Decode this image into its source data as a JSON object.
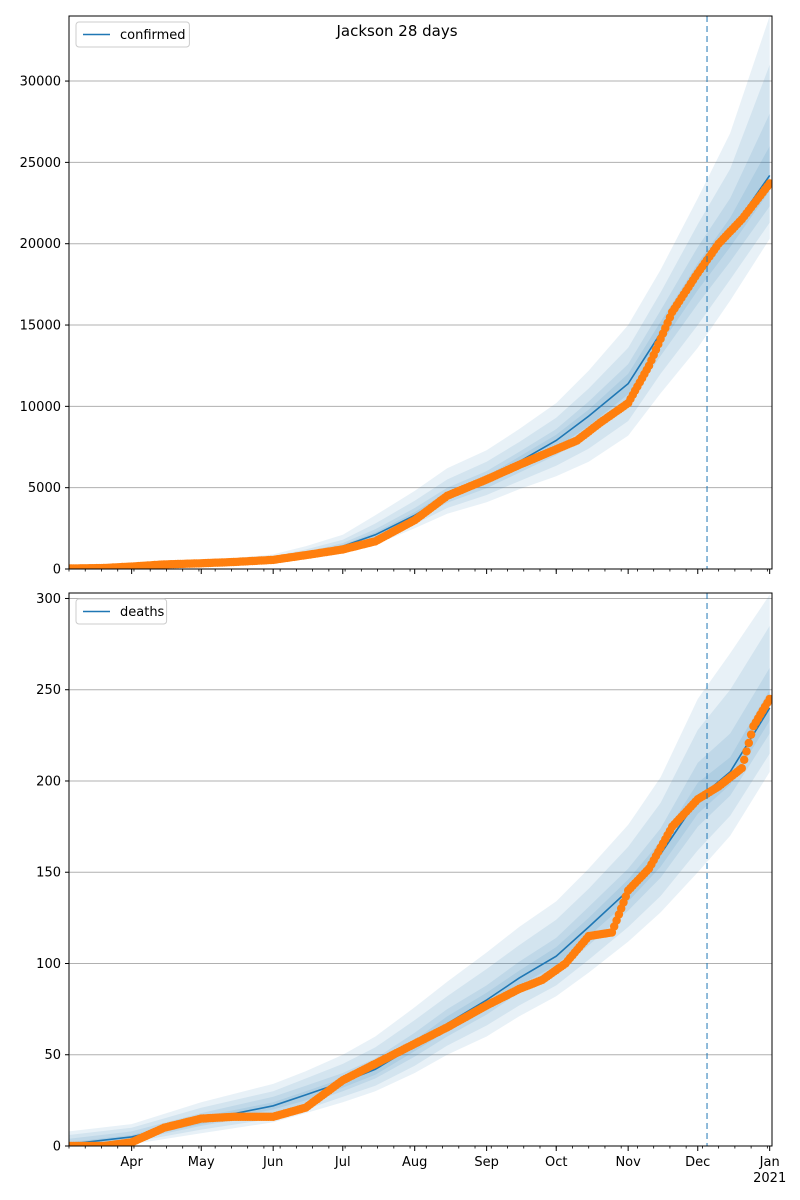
{
  "title": "Jackson 28 days",
  "chart_data": [
    {
      "type": "line",
      "legend": "confirmed",
      "legend_position": "top-left",
      "ylim": [
        0,
        34000
      ],
      "yticks": [
        0,
        5000,
        10000,
        15000,
        20000,
        25000,
        30000
      ],
      "grid": "y",
      "x_start": "2020-03-05",
      "x_end": "2021-01-02",
      "vline_date": "2020-12-05",
      "model": {
        "dates": [
          "2020-03-05",
          "2020-04-01",
          "2020-05-01",
          "2020-06-01",
          "2020-06-15",
          "2020-07-01",
          "2020-07-15",
          "2020-08-01",
          "2020-08-15",
          "2020-09-01",
          "2020-09-15",
          "2020-10-01",
          "2020-10-15",
          "2020-11-01",
          "2020-11-15",
          "2020-12-01",
          "2020-12-15",
          "2021-01-01"
        ],
        "median": [
          50,
          150,
          330,
          600,
          900,
          1400,
          2100,
          3300,
          4500,
          5500,
          6600,
          7900,
          9400,
          11400,
          14500,
          18000,
          20700,
          24200
        ],
        "bands": [
          {
            "lo": [
              0,
              100,
              250,
              450,
              650,
              1000,
              1500,
              2500,
              3400,
              4100,
              4900,
              5700,
              6600,
              8200,
              10800,
              13600,
              16500,
              20300
            ],
            "hi": [
              150,
              260,
              480,
              900,
              1400,
              2100,
              3300,
              4800,
              6200,
              7300,
              8600,
              10200,
              12200,
              15000,
              18400,
              22800,
              26800,
              34000
            ]
          },
          {
            "lo": [
              10,
              115,
              275,
              500,
              720,
              1120,
              1680,
              2750,
              3750,
              4550,
              5400,
              6350,
              7400,
              9100,
              12000,
              15000,
              17800,
              21300
            ],
            "hi": [
              110,
              220,
              420,
              780,
              1200,
              1800,
              2800,
              4200,
              5500,
              6600,
              7800,
              9300,
              11100,
              13600,
              17000,
              21200,
              24600,
              31000
            ]
          },
          {
            "lo": [
              25,
              130,
              300,
              540,
              790,
              1240,
              1860,
              2970,
              4070,
              4970,
              5920,
              7000,
              8200,
              10100,
              13100,
              16300,
              18900,
              22300
            ],
            "hi": [
              80,
              185,
              375,
              690,
              1040,
              1600,
              2440,
              3750,
              5000,
              6020,
              7200,
              8600,
              10300,
              12600,
              15900,
              19800,
              22800,
              28000
            ]
          },
          {
            "lo": [
              40,
              140,
              315,
              570,
              845,
              1320,
              1980,
              3135,
              4285,
              5235,
              6260,
              7450,
              8800,
              10750,
              13800,
              17150,
              19800,
              23250
            ],
            "hi": [
              60,
              165,
              350,
              640,
              960,
              1490,
              2250,
              3500,
              4720,
              5720,
              6900,
              8250,
              9800,
              12000,
              15200,
              18800,
              21600,
              26000
            ]
          }
        ]
      },
      "observed": {
        "dates": [
          "2020-03-05",
          "2020-03-20",
          "2020-04-01",
          "2020-04-15",
          "2020-05-01",
          "2020-05-15",
          "2020-06-01",
          "2020-06-15",
          "2020-07-01",
          "2020-07-15",
          "2020-08-01",
          "2020-08-15",
          "2020-09-01",
          "2020-09-15",
          "2020-09-30",
          "2020-10-10",
          "2020-10-20",
          "2020-11-01",
          "2020-11-10",
          "2020-11-20",
          "2020-12-01",
          "2020-12-10",
          "2020-12-20",
          "2021-01-01"
        ],
        "values": [
          30,
          60,
          150,
          280,
          350,
          430,
          560,
          850,
          1200,
          1700,
          3000,
          4500,
          5500,
          6400,
          7300,
          7900,
          9000,
          10200,
          12500,
          15800,
          18200,
          20000,
          21500,
          23700
        ]
      }
    },
    {
      "type": "line",
      "legend": "deaths",
      "legend_position": "top-left",
      "ylim": [
        0,
        303
      ],
      "yticks": [
        0,
        50,
        100,
        150,
        200,
        250,
        300
      ],
      "xticks": [
        "Apr",
        "May",
        "Jun",
        "Jul",
        "Aug",
        "Sep",
        "Oct",
        "Nov",
        "Dec",
        "Jan\n2021"
      ],
      "grid": "y",
      "x_start": "2020-03-05",
      "x_end": "2021-01-02",
      "vline_date": "2020-12-05",
      "model": {
        "dates": [
          "2020-03-05",
          "2020-04-01",
          "2020-05-01",
          "2020-06-01",
          "2020-06-15",
          "2020-07-01",
          "2020-07-15",
          "2020-08-01",
          "2020-08-15",
          "2020-09-01",
          "2020-09-15",
          "2020-10-01",
          "2020-10-15",
          "2020-11-01",
          "2020-11-15",
          "2020-12-01",
          "2020-12-15",
          "2021-01-01"
        ],
        "median": [
          1,
          5,
          14,
          22,
          28,
          35,
          42,
          55,
          67,
          80,
          92,
          104,
          120,
          140,
          160,
          190,
          205,
          240
        ],
        "bands": [
          {
            "lo": [
              0,
              1,
              7,
              13,
              18,
              24,
              30,
              40,
              50,
              60,
              71,
              82,
              95,
              112,
              128,
              150,
              170,
              205
            ],
            "hi": [
              8,
              12,
              24,
              34,
              41,
              50,
              60,
              76,
              90,
              106,
              120,
              134,
              152,
              176,
              202,
              245,
              270,
              302
            ]
          },
          {
            "lo": [
              0,
              2,
              9,
              15,
              20,
              27,
              33,
              44,
              55,
              66,
              77,
              88,
              102,
              120,
              137,
              162,
              181,
              215
            ],
            "hi": [
              6,
              10,
              21,
              30,
              37,
              45,
              54,
              69,
              82,
              97,
              110,
              124,
              141,
              164,
              188,
              228,
              250,
              285
            ]
          },
          {
            "lo": [
              0,
              3,
              11,
              18,
              23,
              30,
              37,
              49,
              60,
              72,
              84,
              95,
              110,
              129,
              147,
              175,
              192,
              226
            ],
            "hi": [
              4,
              8,
              18,
              27,
              33,
              40,
              48,
              62,
              75,
              88,
              101,
              114,
              131,
              152,
              174,
              210,
              226,
              262
            ]
          },
          {
            "lo": [
              0,
              4,
              12,
              20,
              25,
              32,
              39,
              52,
              63,
              76,
              88,
              99,
              115,
              134,
              153,
              182,
              198,
              233
            ],
            "hi": [
              2,
              6,
              16,
              24,
              30,
              37,
              45,
              58,
              71,
              84,
              96,
              109,
              125,
              146,
              167,
              199,
              213,
              250
            ]
          }
        ]
      },
      "observed": {
        "dates": [
          "2020-03-05",
          "2020-03-20",
          "2020-04-01",
          "2020-04-15",
          "2020-05-01",
          "2020-05-15",
          "2020-06-01",
          "2020-06-15",
          "2020-07-01",
          "2020-07-15",
          "2020-08-01",
          "2020-08-15",
          "2020-09-01",
          "2020-09-15",
          "2020-09-25",
          "2020-10-05",
          "2020-10-15",
          "2020-10-25",
          "2020-11-01",
          "2020-11-10",
          "2020-11-20",
          "2020-12-01",
          "2020-12-10",
          "2020-12-20",
          "2020-12-25",
          "2021-01-01"
        ],
        "values": [
          0,
          0,
          2,
          10,
          15,
          16,
          16,
          21,
          36,
          45,
          56,
          65,
          77,
          86,
          91,
          100,
          115,
          117,
          140,
          152,
          175,
          190,
          197,
          207,
          230,
          245
        ]
      }
    }
  ]
}
